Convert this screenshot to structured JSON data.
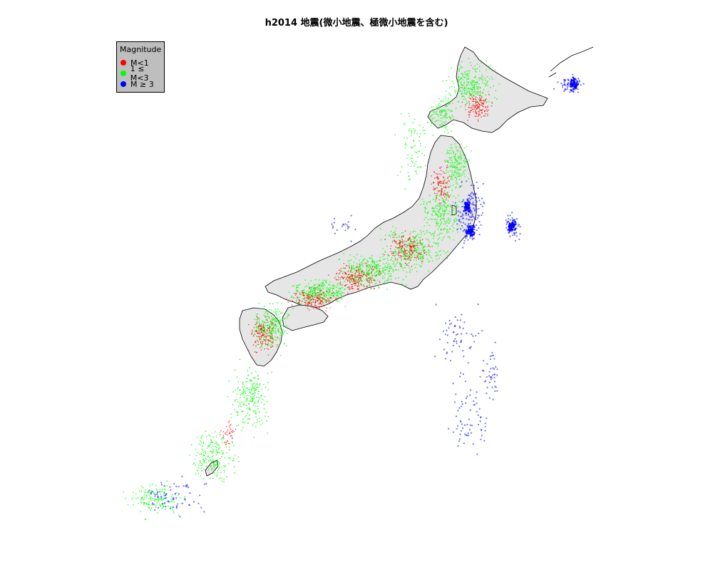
{
  "title": "h2014 地震(微小地震、極微小地震を含む)",
  "legend": {
    "title": "Magnitude",
    "items": [
      {
        "label": "M<1",
        "color": "#ff0000"
      },
      {
        "label": "1 ≤ M<3",
        "color": "#00ff00"
      },
      {
        "label": "M ≥ 3",
        "color": "#0000ff"
      }
    ]
  },
  "colors": {
    "land_fill": "#e6e6e6",
    "coastline": "#000000",
    "background": "#ffffff"
  }
}
